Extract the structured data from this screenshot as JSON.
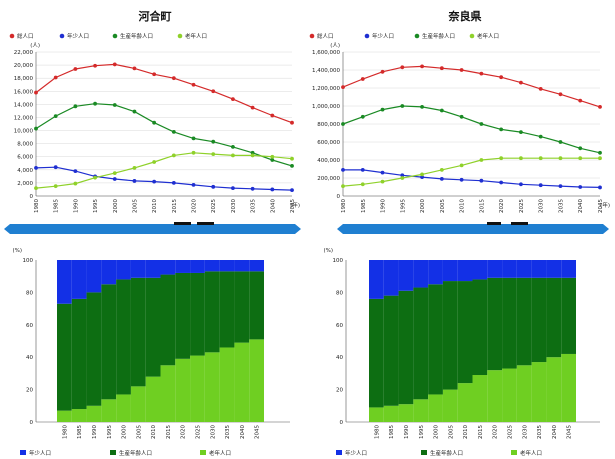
{
  "colors": {
    "total": "#d42a2a",
    "young": "#1f2fd1",
    "working": "#1a8a24",
    "elderly": "#8fd12a",
    "bar_young": "#1330e6",
    "bar_working": "#0d6e12",
    "bar_elderly": "#6fcf22",
    "band": "#1f7fd1"
  },
  "legend_line": {
    "total": "総人口",
    "young": "年少人口",
    "working": "生産年齢人口",
    "elderly": "老年人口"
  },
  "legend_bar": {
    "young": "年少人口",
    "working": "生産年齢人口",
    "elderly": "老年人口"
  },
  "chart_data": [
    {
      "type": "line",
      "title": "河合町",
      "ylabel_unit": "(人)",
      "xlabel_unit": "(年)",
      "x": [
        1980,
        1985,
        1990,
        1995,
        2000,
        2005,
        2010,
        2015,
        2020,
        2025,
        2030,
        2035,
        2040,
        2045
      ],
      "ylim": [
        0,
        22000
      ],
      "yticks": [
        0,
        2000,
        4000,
        6000,
        8000,
        10000,
        12000,
        14000,
        16000,
        18000,
        20000,
        22000
      ],
      "ytick_labels": [
        "0",
        "2,000",
        "4,000",
        "6,000",
        "8,000",
        "10,000",
        "12,000",
        "14,000",
        "16,000",
        "18,000",
        "20,000",
        "22,000"
      ],
      "series": [
        {
          "key": "total",
          "name": "総人口",
          "values": [
            15800,
            18100,
            19400,
            19900,
            20100,
            19500,
            18600,
            18000,
            17000,
            16000,
            14800,
            13500,
            12300,
            11200
          ]
        },
        {
          "key": "working",
          "name": "生産年齢人口",
          "values": [
            10300,
            12200,
            13700,
            14100,
            13900,
            12900,
            11200,
            9800,
            8800,
            8300,
            7500,
            6600,
            5500,
            4600
          ]
        },
        {
          "key": "young",
          "name": "年少人口",
          "values": [
            4300,
            4400,
            3800,
            3000,
            2600,
            2300,
            2200,
            2000,
            1700,
            1400,
            1200,
            1100,
            1000,
            900
          ]
        },
        {
          "key": "elderly",
          "name": "老年人口",
          "values": [
            1200,
            1500,
            1900,
            2800,
            3500,
            4300,
            5200,
            6200,
            6600,
            6400,
            6200,
            6200,
            6000,
            5700
          ]
        }
      ]
    },
    {
      "type": "line",
      "title": "奈良県",
      "ylabel_unit": "(人)",
      "xlabel_unit": "(年)",
      "x": [
        1980,
        1985,
        1990,
        1995,
        2000,
        2005,
        2010,
        2015,
        2020,
        2025,
        2030,
        2035,
        2040,
        2045
      ],
      "ylim": [
        0,
        1600000
      ],
      "yticks": [
        0,
        200000,
        400000,
        600000,
        800000,
        1000000,
        1200000,
        1400000,
        1600000
      ],
      "ytick_labels": [
        "0",
        "200,000",
        "400,000",
        "600,000",
        "800,000",
        "1,000,000",
        "1,200,000",
        "1,400,000",
        "1,600,000"
      ],
      "series": [
        {
          "key": "total",
          "name": "総人口",
          "values": [
            1210000,
            1300000,
            1380000,
            1430000,
            1440000,
            1420000,
            1400000,
            1360000,
            1320000,
            1260000,
            1190000,
            1130000,
            1060000,
            990000
          ]
        },
        {
          "key": "working",
          "name": "生産年齢人口",
          "values": [
            800000,
            880000,
            960000,
            1000000,
            990000,
            950000,
            880000,
            800000,
            740000,
            710000,
            660000,
            600000,
            530000,
            480000
          ]
        },
        {
          "key": "young",
          "name": "年少人口",
          "values": [
            290000,
            290000,
            260000,
            230000,
            210000,
            190000,
            180000,
            170000,
            150000,
            130000,
            120000,
            110000,
            100000,
            95000
          ]
        },
        {
          "key": "elderly",
          "name": "老年人口",
          "values": [
            110000,
            130000,
            160000,
            200000,
            240000,
            290000,
            340000,
            400000,
            420000,
            420000,
            420000,
            420000,
            420000,
            420000
          ]
        }
      ]
    },
    {
      "type": "bar",
      "stacked": true,
      "percent": true,
      "ylabel_unit": "(%)",
      "x": [
        1980,
        1985,
        1990,
        1995,
        2000,
        2005,
        2010,
        2015,
        2020,
        2025,
        2030,
        2035,
        2040,
        2045
      ],
      "ylim": [
        0,
        100
      ],
      "yticks": [
        0,
        20,
        40,
        60,
        80,
        100
      ],
      "series": [
        {
          "key": "elderly",
          "name": "老年人口",
          "values": [
            7,
            8,
            10,
            14,
            17,
            22,
            28,
            35,
            39,
            41,
            43,
            46,
            49,
            51
          ]
        },
        {
          "key": "working",
          "name": "生産年齢人口",
          "values": [
            66,
            68,
            70,
            71,
            71,
            67,
            61,
            56,
            53,
            51,
            50,
            47,
            44,
            42
          ]
        },
        {
          "key": "young",
          "name": "年少人口",
          "values": [
            27,
            24,
            20,
            15,
            12,
            11,
            11,
            9,
            8,
            8,
            7,
            7,
            7,
            7
          ]
        }
      ]
    },
    {
      "type": "bar",
      "stacked": true,
      "percent": true,
      "ylabel_unit": "(%)",
      "x": [
        1980,
        1985,
        1990,
        1995,
        2000,
        2005,
        2010,
        2015,
        2020,
        2025,
        2030,
        2035,
        2040,
        2045
      ],
      "ylim": [
        0,
        100
      ],
      "yticks": [
        0,
        20,
        40,
        60,
        80,
        100
      ],
      "series": [
        {
          "key": "elderly",
          "name": "老年人口",
          "values": [
            9,
            10,
            11,
            14,
            17,
            20,
            24,
            29,
            32,
            33,
            35,
            37,
            40,
            42
          ]
        },
        {
          "key": "working",
          "name": "生産年齢人口",
          "values": [
            67,
            68,
            70,
            69,
            68,
            67,
            63,
            59,
            57,
            56,
            54,
            52,
            49,
            47
          ]
        },
        {
          "key": "young",
          "name": "年少人口",
          "values": [
            24,
            22,
            19,
            17,
            15,
            13,
            13,
            12,
            11,
            11,
            11,
            11,
            11,
            11
          ]
        }
      ]
    }
  ]
}
